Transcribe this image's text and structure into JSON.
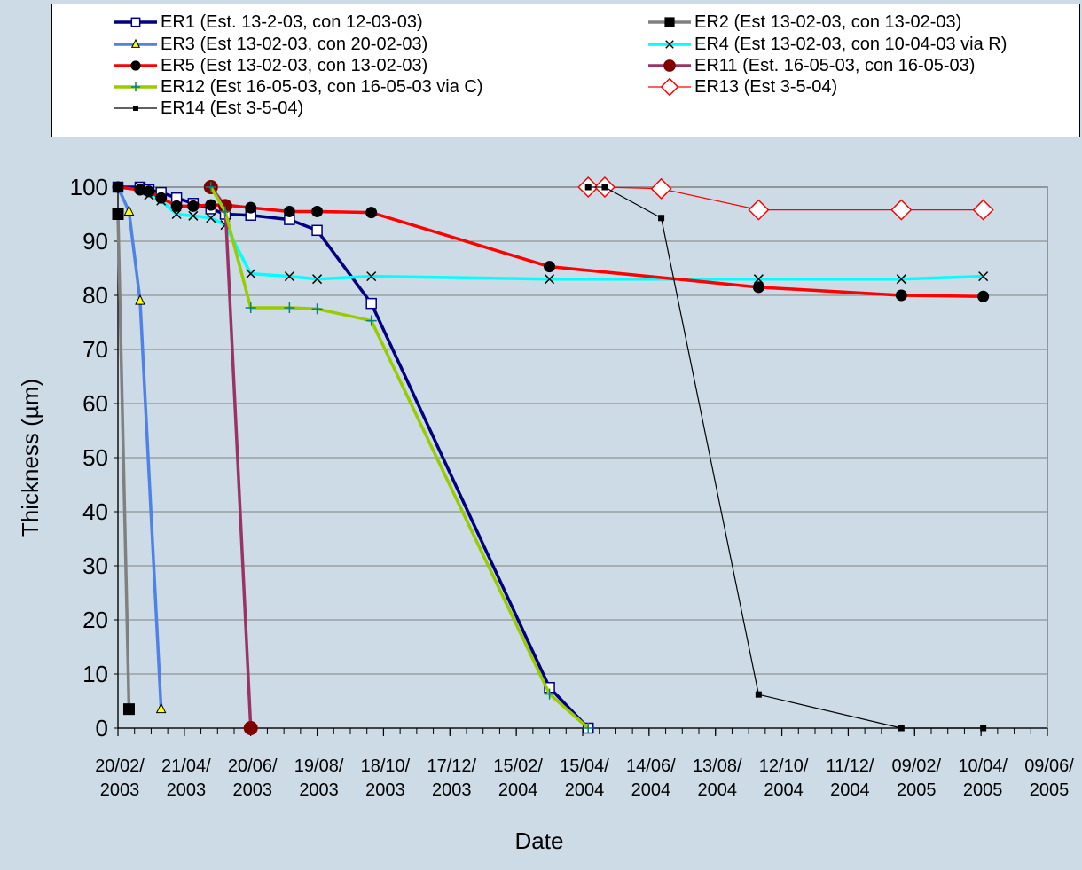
{
  "chart_data": {
    "type": "line",
    "xlabel": "Date",
    "ylabel": "Thickness (µm)",
    "ylim": [
      0,
      100
    ],
    "yticks": [
      0,
      10,
      20,
      30,
      40,
      50,
      60,
      70,
      80,
      90,
      100
    ],
    "xlim": [
      "2003-02-20",
      "2005-06-09"
    ],
    "xticks": [
      {
        "date": "2003-02-20",
        "label": [
          "20/02/",
          "2003"
        ]
      },
      {
        "date": "2003-04-21",
        "label": [
          "21/04/",
          "2003"
        ]
      },
      {
        "date": "2003-06-20",
        "label": [
          "20/06/",
          "2003"
        ]
      },
      {
        "date": "2003-08-19",
        "label": [
          "19/08/",
          "2003"
        ]
      },
      {
        "date": "2003-10-18",
        "label": [
          "18/10/",
          "2003"
        ]
      },
      {
        "date": "2003-12-17",
        "label": [
          "17/12/",
          "2003"
        ]
      },
      {
        "date": "2004-02-15",
        "label": [
          "15/02/",
          "2004"
        ]
      },
      {
        "date": "2004-04-15",
        "label": [
          "15/04/",
          "2004"
        ]
      },
      {
        "date": "2004-06-14",
        "label": [
          "14/06/",
          "2004"
        ]
      },
      {
        "date": "2004-08-13",
        "label": [
          "13/08/",
          "2004"
        ]
      },
      {
        "date": "2004-10-12",
        "label": [
          "12/10/",
          "2004"
        ]
      },
      {
        "date": "2004-12-11",
        "label": [
          "11/12/",
          "2004"
        ]
      },
      {
        "date": "2005-02-09",
        "label": [
          "09/02/",
          "2005"
        ]
      },
      {
        "date": "2005-04-10",
        "label": [
          "10/04/",
          "2005"
        ]
      },
      {
        "date": "2005-06-09",
        "label": [
          "09/06/",
          "2005"
        ]
      }
    ],
    "grid": true,
    "legend_position": "top",
    "series": [
      {
        "name": "ER1 (Est. 13-2-03, con 12-03-03)",
        "color": "#000080",
        "marker": "square-open",
        "width": 3.5,
        "points": [
          [
            "2003-02-20",
            100
          ],
          [
            "2003-03-12",
            100
          ],
          [
            "2003-03-20",
            99.5
          ],
          [
            "2003-03-31",
            99
          ],
          [
            "2003-04-14",
            98
          ],
          [
            "2003-04-29",
            97
          ],
          [
            "2003-05-15",
            96
          ],
          [
            "2003-05-28",
            95
          ],
          [
            "2003-06-20",
            94.8
          ],
          [
            "2003-07-25",
            94
          ],
          [
            "2003-08-19",
            92
          ],
          [
            "2003-10-07",
            78.5
          ],
          [
            "2004-03-16",
            7.5
          ],
          [
            "2004-04-20",
            0
          ]
        ]
      },
      {
        "name": "ER2 (Est 13-02-03, con 13-02-03)",
        "color": "#808080",
        "marker": "square-filled",
        "width": 3.5,
        "points": [
          [
            "2003-02-20",
            95
          ],
          [
            "2003-03-02",
            3.5
          ]
        ]
      },
      {
        "name": "ER3 (Est 13-02-03, con 20-02-03)",
        "color": "#4f81e6",
        "marker": "triangle",
        "width": 3.5,
        "points": [
          [
            "2003-02-20",
            100
          ],
          [
            "2003-03-02",
            95.5
          ],
          [
            "2003-03-12",
            79
          ],
          [
            "2003-03-31",
            3.5
          ]
        ]
      },
      {
        "name": "ER4 (Est 13-02-03, con 10-04-03 via R)",
        "color": "#00ffff",
        "marker": "x",
        "width": 3.5,
        "points": [
          [
            "2003-03-12",
            100
          ],
          [
            "2003-03-20",
            98.5
          ],
          [
            "2003-03-31",
            97.5
          ],
          [
            "2003-04-14",
            95
          ],
          [
            "2003-04-29",
            94.7
          ],
          [
            "2003-05-15",
            94.3
          ],
          [
            "2003-05-28",
            93
          ],
          [
            "2003-06-20",
            84
          ],
          [
            "2003-07-25",
            83.5
          ],
          [
            "2003-08-19",
            83
          ],
          [
            "2003-10-07",
            83.5
          ],
          [
            "2004-03-16",
            83
          ],
          [
            "2004-09-21",
            83
          ],
          [
            "2005-01-28",
            83
          ],
          [
            "2005-04-12",
            83.5
          ]
        ]
      },
      {
        "name": "ER5 (Est 13-02-03, con 13-02-03)",
        "color": "#ff0000",
        "marker": "circle",
        "width": 3.5,
        "points": [
          [
            "2003-02-20",
            100
          ],
          [
            "2003-03-12",
            99.5
          ],
          [
            "2003-03-20",
            99.2
          ],
          [
            "2003-03-31",
            98
          ],
          [
            "2003-04-14",
            96.5
          ],
          [
            "2003-04-29",
            96.5
          ],
          [
            "2003-05-15",
            96.7
          ],
          [
            "2003-05-28",
            96.7
          ],
          [
            "2003-06-20",
            96.2
          ],
          [
            "2003-07-25",
            95.5
          ],
          [
            "2003-08-19",
            95.5
          ],
          [
            "2003-10-07",
            95.3
          ],
          [
            "2004-03-16",
            85.3
          ],
          [
            "2004-09-21",
            81.5
          ],
          [
            "2005-01-28",
            80
          ],
          [
            "2005-04-12",
            79.8
          ]
        ]
      },
      {
        "name": "ER11 (Est. 16-05-03, con 16-05-03)",
        "color": "#993366",
        "marker": "circle-large",
        "width": 3.5,
        "points": [
          [
            "2003-05-15",
            100
          ],
          [
            "2003-05-28",
            96.5
          ],
          [
            "2003-06-20",
            0
          ]
        ]
      },
      {
        "name": "ER12 (Est 16-05-03, con 16-05-03 via C)",
        "color": "#99cc00",
        "marker": "plus",
        "width": 3.5,
        "points": [
          [
            "2003-05-15",
            100
          ],
          [
            "2003-05-28",
            95.5
          ],
          [
            "2003-06-20",
            77.7
          ],
          [
            "2003-07-25",
            77.7
          ],
          [
            "2003-08-19",
            77.5
          ],
          [
            "2003-10-07",
            75.3
          ],
          [
            "2004-03-16",
            6.3
          ],
          [
            "2004-04-20",
            0
          ]
        ]
      },
      {
        "name": "ER13 (Est 3-5-04)",
        "color": "#ff0000",
        "marker": "diamond-open",
        "width": 1.2,
        "points": [
          [
            "2004-04-20",
            100
          ],
          [
            "2004-05-05",
            100
          ],
          [
            "2004-06-25",
            99.7
          ],
          [
            "2004-09-21",
            95.8
          ],
          [
            "2005-01-28",
            95.8
          ],
          [
            "2005-04-12",
            95.8
          ]
        ]
      },
      {
        "name": "ER14 (Est 3-5-04)",
        "color": "#000000",
        "marker": "square-small",
        "width": 1.2,
        "points": [
          [
            "2004-04-20",
            100
          ],
          [
            "2004-05-05",
            100
          ],
          [
            "2004-06-25",
            94.3
          ],
          [
            "2004-09-21",
            6.2
          ],
          [
            "2005-01-28",
            0
          ],
          [
            "2005-04-12",
            0
          ]
        ]
      }
    ]
  }
}
